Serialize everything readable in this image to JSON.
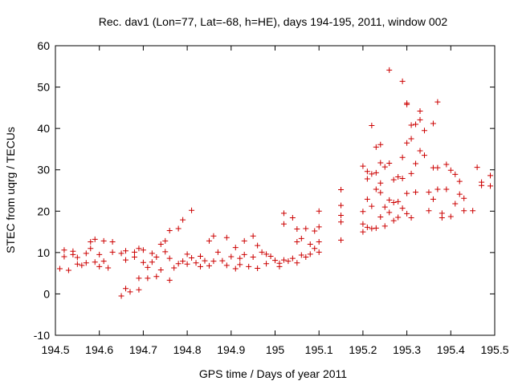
{
  "chart_data": {
    "type": "scatter",
    "title": "Rec. dav1 (Lon=77, Lat=-68, h=HE), days 194-195, 2011, window 002",
    "xlabel": "GPS time / Days of year 2011",
    "ylabel": "STEC from uqrg / TECUs",
    "xlim": [
      194.5,
      195.5
    ],
    "ylim": [
      -10,
      60
    ],
    "xticks": [
      "194.5",
      "194.6",
      "194.7",
      "194.8",
      "194.9",
      "195",
      "195.1",
      "195.2",
      "195.3",
      "195.4",
      "195.5"
    ],
    "yticks": [
      "-10",
      "0",
      "10",
      "20",
      "30",
      "40",
      "50",
      "60"
    ],
    "marker": "+",
    "color": "#cc0000",
    "grid": false,
    "series": [
      {
        "name": "STEC",
        "points": [
          [
            194.51,
            6.1
          ],
          [
            194.52,
            9.0
          ],
          [
            194.52,
            10.6
          ],
          [
            194.53,
            5.7
          ],
          [
            194.54,
            9.5
          ],
          [
            194.54,
            10.3
          ],
          [
            194.55,
            7.2
          ],
          [
            194.55,
            8.8
          ],
          [
            194.56,
            6.9
          ],
          [
            194.57,
            9.8
          ],
          [
            194.57,
            7.5
          ],
          [
            194.58,
            12.6
          ],
          [
            194.58,
            11.0
          ],
          [
            194.59,
            7.7
          ],
          [
            194.59,
            13.2
          ],
          [
            194.6,
            9.5
          ],
          [
            194.6,
            6.6
          ],
          [
            194.61,
            12.8
          ],
          [
            194.61,
            7.9
          ],
          [
            194.62,
            6.3
          ],
          [
            194.63,
            12.6
          ],
          [
            194.63,
            10.1
          ],
          [
            194.65,
            -0.5
          ],
          [
            194.65,
            9.8
          ],
          [
            194.66,
            1.3
          ],
          [
            194.66,
            10.4
          ],
          [
            194.66,
            8.2
          ],
          [
            194.67,
            0.5
          ],
          [
            194.68,
            10.1
          ],
          [
            194.68,
            8.9
          ],
          [
            194.69,
            1.0
          ],
          [
            194.69,
            3.8
          ],
          [
            194.69,
            11.0
          ],
          [
            194.7,
            7.6
          ],
          [
            194.7,
            10.6
          ],
          [
            194.71,
            3.8
          ],
          [
            194.71,
            6.4
          ],
          [
            194.72,
            7.7
          ],
          [
            194.72,
            9.8
          ],
          [
            194.73,
            8.9
          ],
          [
            194.73,
            4.2
          ],
          [
            194.74,
            12.0
          ],
          [
            194.74,
            5.8
          ],
          [
            194.75,
            12.8
          ],
          [
            194.75,
            10.2
          ],
          [
            194.76,
            8.6
          ],
          [
            194.76,
            15.3
          ],
          [
            194.76,
            3.3
          ],
          [
            194.77,
            6.3
          ],
          [
            194.78,
            15.8
          ],
          [
            194.78,
            7.3
          ],
          [
            194.79,
            7.9
          ],
          [
            194.79,
            17.9
          ],
          [
            194.8,
            7.2
          ],
          [
            194.8,
            9.6
          ],
          [
            194.81,
            20.2
          ],
          [
            194.81,
            8.7
          ],
          [
            194.82,
            7.5
          ],
          [
            194.83,
            6.6
          ],
          [
            194.83,
            9.1
          ],
          [
            194.84,
            8.0
          ],
          [
            194.85,
            6.8
          ],
          [
            194.85,
            12.8
          ],
          [
            194.86,
            14.0
          ],
          [
            194.86,
            7.9
          ],
          [
            194.87,
            10.1
          ],
          [
            194.88,
            8.0
          ],
          [
            194.89,
            13.6
          ],
          [
            194.89,
            6.9
          ],
          [
            194.9,
            9.0
          ],
          [
            194.91,
            6.1
          ],
          [
            194.91,
            11.2
          ],
          [
            194.92,
            8.6
          ],
          [
            194.92,
            7.1
          ],
          [
            194.93,
            9.5
          ],
          [
            194.93,
            12.8
          ],
          [
            194.94,
            6.6
          ],
          [
            194.95,
            14.0
          ],
          [
            194.95,
            8.9
          ],
          [
            194.96,
            6.2
          ],
          [
            194.96,
            11.7
          ],
          [
            194.97,
            10.1
          ],
          [
            194.98,
            9.6
          ],
          [
            194.98,
            7.3
          ],
          [
            194.99,
            9.1
          ],
          [
            195.0,
            8.1
          ],
          [
            195.01,
            7.4
          ],
          [
            195.01,
            6.6
          ],
          [
            195.02,
            19.5
          ],
          [
            195.02,
            16.9
          ],
          [
            195.02,
            8.2
          ],
          [
            195.03,
            7.9
          ],
          [
            195.04,
            18.4
          ],
          [
            195.04,
            8.6
          ],
          [
            195.05,
            12.6
          ],
          [
            195.05,
            15.7
          ],
          [
            195.05,
            7.5
          ],
          [
            195.06,
            9.4
          ],
          [
            195.06,
            13.4
          ],
          [
            195.07,
            8.9
          ],
          [
            195.07,
            15.8
          ],
          [
            195.08,
            12.0
          ],
          [
            195.08,
            9.6
          ],
          [
            195.09,
            11.0
          ],
          [
            195.09,
            15.2
          ],
          [
            195.1,
            20.0
          ],
          [
            195.1,
            16.2
          ],
          [
            195.1,
            12.6
          ],
          [
            195.1,
            10.1
          ],
          [
            195.15,
            25.2
          ],
          [
            195.15,
            21.4
          ],
          [
            195.15,
            19.0
          ],
          [
            195.15,
            17.4
          ],
          [
            195.15,
            13.0
          ],
          [
            195.2,
            30.9
          ],
          [
            195.2,
            19.9
          ],
          [
            195.2,
            16.9
          ],
          [
            195.2,
            15.0
          ],
          [
            195.21,
            29.6
          ],
          [
            195.21,
            27.8
          ],
          [
            195.21,
            22.9
          ],
          [
            195.21,
            16.1
          ],
          [
            195.22,
            40.7
          ],
          [
            195.22,
            29.0
          ],
          [
            195.22,
            21.2
          ],
          [
            195.22,
            15.8
          ],
          [
            195.23,
            35.5
          ],
          [
            195.23,
            29.3
          ],
          [
            195.23,
            25.3
          ],
          [
            195.23,
            15.9
          ],
          [
            195.24,
            36.1
          ],
          [
            195.24,
            31.7
          ],
          [
            195.24,
            26.8
          ],
          [
            195.24,
            24.5
          ],
          [
            195.24,
            18.6
          ],
          [
            195.25,
            30.7
          ],
          [
            195.25,
            21.0
          ],
          [
            195.25,
            16.4
          ],
          [
            195.26,
            54.1
          ],
          [
            195.26,
            31.6
          ],
          [
            195.26,
            22.7
          ],
          [
            195.26,
            19.7
          ],
          [
            195.27,
            27.6
          ],
          [
            195.27,
            22.1
          ],
          [
            195.27,
            17.7
          ],
          [
            195.28,
            28.3
          ],
          [
            195.28,
            22.3
          ],
          [
            195.28,
            18.5
          ],
          [
            195.29,
            51.4
          ],
          [
            195.29,
            33.0
          ],
          [
            195.29,
            27.9
          ],
          [
            195.29,
            20.7
          ],
          [
            195.3,
            46.1
          ],
          [
            195.3,
            45.8
          ],
          [
            195.3,
            36.5
          ],
          [
            195.3,
            24.3
          ],
          [
            195.3,
            19.4
          ],
          [
            195.31,
            40.8
          ],
          [
            195.31,
            37.5
          ],
          [
            195.31,
            29.1
          ],
          [
            195.31,
            18.4
          ],
          [
            195.32,
            41.0
          ],
          [
            195.32,
            31.5
          ],
          [
            195.32,
            24.6
          ],
          [
            195.33,
            44.2
          ],
          [
            195.33,
            42.1
          ],
          [
            195.33,
            34.6
          ],
          [
            195.34,
            39.5
          ],
          [
            195.34,
            33.5
          ],
          [
            195.35,
            24.6
          ],
          [
            195.35,
            20.1
          ],
          [
            195.36,
            41.2
          ],
          [
            195.36,
            30.5
          ],
          [
            195.36,
            22.9
          ],
          [
            195.37,
            46.4
          ],
          [
            195.37,
            30.5
          ],
          [
            195.37,
            25.3
          ],
          [
            195.38,
            18.4
          ],
          [
            195.38,
            19.5
          ],
          [
            195.39,
            31.3
          ],
          [
            195.39,
            25.3
          ],
          [
            195.4,
            29.9
          ],
          [
            195.4,
            18.7
          ],
          [
            195.41,
            28.9
          ],
          [
            195.41,
            21.8
          ],
          [
            195.42,
            27.2
          ],
          [
            195.42,
            24.1
          ],
          [
            195.43,
            23.1
          ],
          [
            195.43,
            20.1
          ],
          [
            195.45,
            20.1
          ],
          [
            195.46,
            30.6
          ],
          [
            195.47,
            27.0
          ],
          [
            195.47,
            26.2
          ],
          [
            195.49,
            28.6
          ],
          [
            195.49,
            26.1
          ]
        ]
      }
    ]
  }
}
